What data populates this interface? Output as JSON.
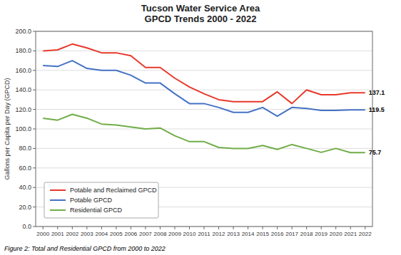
{
  "chart_data": {
    "type": "line",
    "title": "Tucson Water Service Area\nGPCD Trends 2000 - 2022",
    "y_label": "Gallons per Capita per Day (GPCD)",
    "caption": "Figure 2: Total and Residential GPCD from 2000 to 2022",
    "x": [
      2000,
      2001,
      2002,
      2003,
      2004,
      2005,
      2006,
      2007,
      2008,
      2009,
      2010,
      2011,
      2012,
      2013,
      2014,
      2015,
      2016,
      2017,
      2018,
      2019,
      2020,
      2021,
      2022
    ],
    "series": [
      {
        "name": "Potable and Reclaimed GPCD",
        "color": "#e8392a",
        "values": [
          180,
          181,
          187,
          183,
          178,
          178,
          175,
          163,
          163,
          152,
          143,
          136,
          130,
          128,
          128,
          128,
          138,
          126,
          140,
          135,
          135,
          137.1,
          137.1
        ]
      },
      {
        "name": "Potable GPCD",
        "color": "#4472c4",
        "values": [
          165,
          164,
          170,
          162,
          160,
          160,
          155,
          147,
          147,
          136,
          126,
          126,
          122,
          117,
          117,
          122,
          113,
          122,
          121,
          119,
          119,
          119.5,
          119.5
        ]
      },
      {
        "name": "Residential GPCD",
        "color": "#70ad47",
        "values": [
          111,
          109,
          115,
          111,
          105,
          104,
          102,
          100,
          101,
          93,
          87,
          87,
          81,
          80,
          80,
          83,
          79,
          84,
          80,
          76,
          80,
          75.7,
          75.7
        ]
      }
    ],
    "annotations": [
      {
        "text": "137.1",
        "x": 2022,
        "y": 137.1
      },
      {
        "text": "119.5",
        "x": 2022,
        "y": 119.5
      },
      {
        "text": "75.7",
        "x": 2022,
        "y": 75.7
      }
    ],
    "xlim": [
      1999.5,
      2022.5
    ],
    "xticks": [
      2000,
      2001,
      2002,
      2003,
      2004,
      2005,
      2006,
      2007,
      2008,
      2009,
      2010,
      2011,
      2012,
      2013,
      2014,
      2015,
      2016,
      2017,
      2018,
      2019,
      2020,
      2021,
      2022
    ],
    "ylim": [
      0,
      200
    ],
    "yticks": [
      {
        "value": 0,
        "label": "0.0"
      },
      {
        "value": 20,
        "label": "20.0"
      },
      {
        "value": 40,
        "label": "40.0"
      },
      {
        "value": 60,
        "label": "60.0"
      },
      {
        "value": 80,
        "label": "80.0"
      },
      {
        "value": 100,
        "label": "100.0"
      },
      {
        "value": 120,
        "label": "120.0"
      },
      {
        "value": 140,
        "label": "140.0"
      },
      {
        "value": 160,
        "label": "160.0"
      },
      {
        "value": 180,
        "label": "180.0"
      },
      {
        "value": 200,
        "label": "200.0"
      }
    ],
    "grid": true,
    "legend": "lower left"
  }
}
